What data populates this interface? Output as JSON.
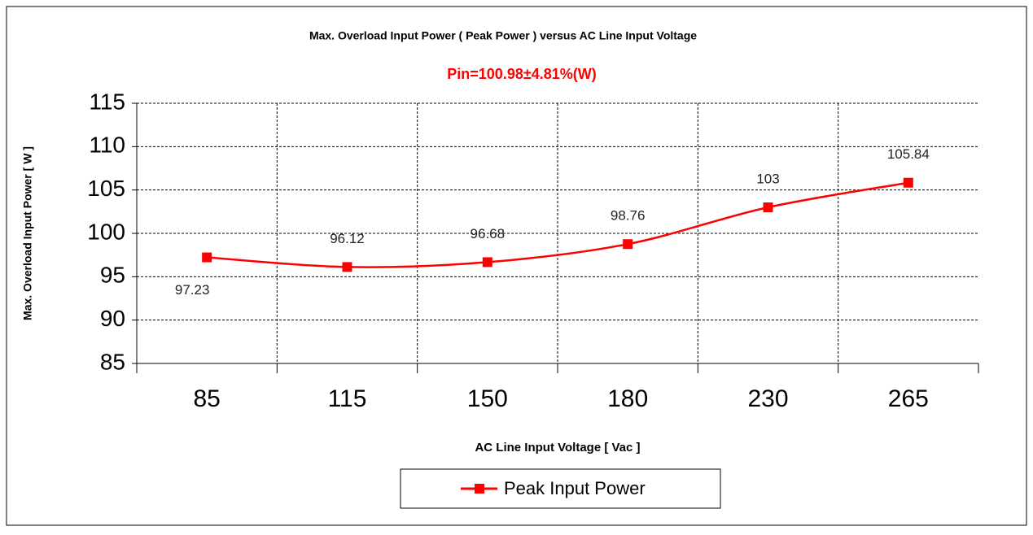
{
  "chart_data": {
    "type": "line",
    "title": "Max. Overload Input Power ( Peak Power ) versus AC Line Input Voltage",
    "subtitle": "Pin=100.98±4.81%(W)",
    "x_label": "AC Line Input Voltage [ Vac ]",
    "y_label": "Max. Overload Input Power [ W ]",
    "categories": [
      "85",
      "115",
      "150",
      "180",
      "230",
      "265"
    ],
    "series": [
      {
        "name": "Peak Input Power",
        "color": "#ff0000",
        "values": [
          97.23,
          96.12,
          96.68,
          98.76,
          103,
          105.84
        ]
      }
    ],
    "ylim": [
      85,
      115
    ],
    "yticks": [
      85,
      90,
      95,
      100,
      105,
      110,
      115
    ],
    "grid": true,
    "legend": "bottom"
  }
}
